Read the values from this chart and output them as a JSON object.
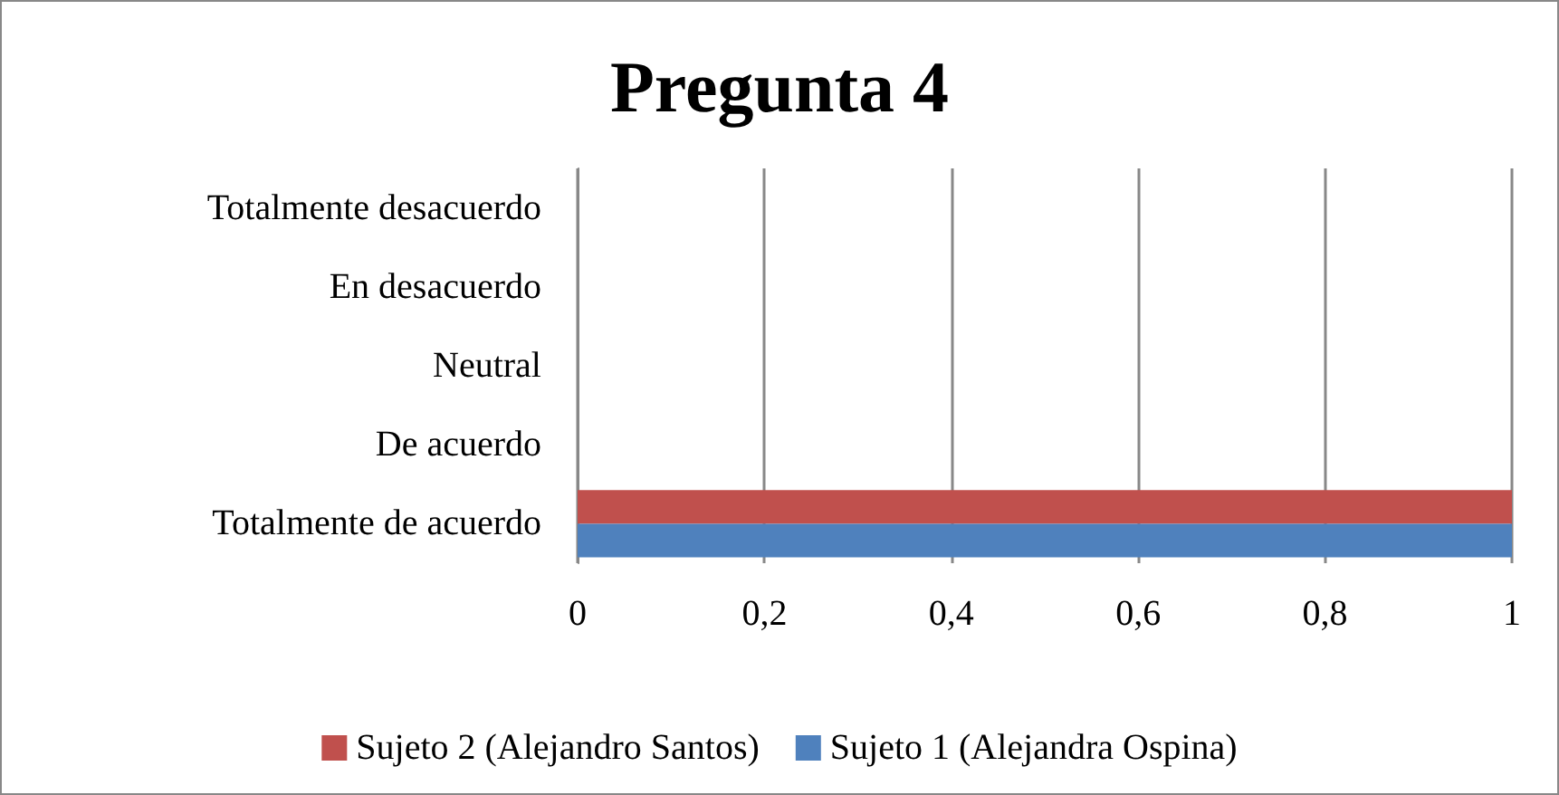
{
  "chart_data": {
    "type": "bar",
    "orientation": "horizontal",
    "title": "Pregunta 4",
    "categories": [
      "Totalmente desacuerdo",
      "En desacuerdo",
      "Neutral",
      "De acuerdo",
      "Totalmente de acuerdo"
    ],
    "series": [
      {
        "name": "Sujeto 2 (Alejandro Santos)",
        "color": "#c0504d",
        "values": [
          0,
          0,
          0,
          0,
          1
        ]
      },
      {
        "name": "Sujeto 1 (Alejandra Ospina)",
        "color": "#4f81bd",
        "values": [
          0,
          0,
          0,
          0,
          1
        ]
      }
    ],
    "xlim": [
      0,
      1
    ],
    "xticks": [
      0,
      {
        "value": 0.2,
        "label": "0,2"
      },
      {
        "value": 0.4,
        "label": "0,4"
      },
      {
        "value": 0.6,
        "label": "0,6"
      },
      {
        "value": 0.8,
        "label": "0,8"
      },
      1
    ],
    "grid": "x",
    "legend": "bottom"
  }
}
